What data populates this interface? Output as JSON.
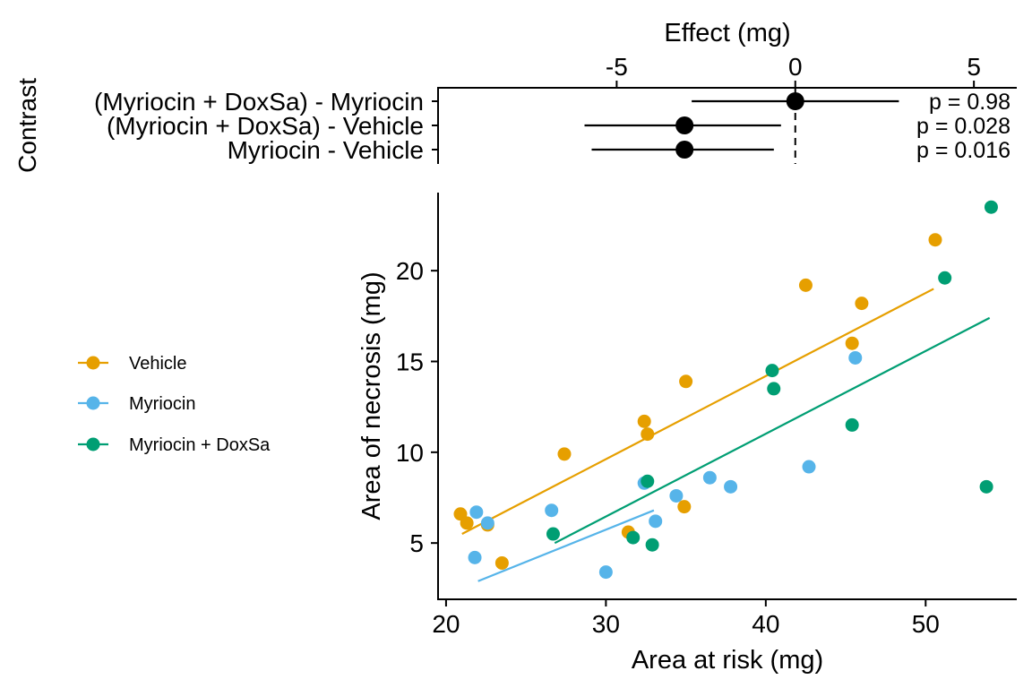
{
  "chart_data": [
    {
      "type": "forest",
      "title": "",
      "xlabel": "Effect (mg)",
      "ylabel": "Contrast",
      "xlim": [
        -10,
        6.2
      ],
      "xticks": [
        -5,
        0,
        5
      ],
      "tick_labels": [
        "-5",
        "0",
        "5"
      ],
      "reference_line": 0,
      "contrasts": [
        {
          "label": "(Myriocin + DoxSa) - Myriocin",
          "estimate": 0.0,
          "lower": -2.9,
          "upper": 2.9,
          "p_text": "p =  0.98"
        },
        {
          "label": "(Myriocin + DoxSa) - Vehicle",
          "estimate": -3.1,
          "lower": -5.9,
          "upper": -0.4,
          "p_text": "p =  0.028"
        },
        {
          "label": "Myriocin - Vehicle",
          "estimate": -3.1,
          "lower": -5.7,
          "upper": -0.6,
          "p_text": "p =  0.016"
        }
      ]
    },
    {
      "type": "scatter",
      "title": "",
      "xlabel": "Area at risk (mg)",
      "ylabel": "Area of necrosis (mg)",
      "xlim": [
        19.5,
        55.7
      ],
      "ylim": [
        1.9,
        24.3
      ],
      "xticks": [
        20,
        30,
        40,
        50
      ],
      "yticks": [
        5,
        10,
        15,
        20
      ],
      "x_tick_labels": [
        "20",
        "30",
        "40",
        "50"
      ],
      "y_tick_labels": [
        "5",
        "10",
        "15",
        "20"
      ],
      "legend_position": "left",
      "series": [
        {
          "name": "Vehicle",
          "color": "#E69F00",
          "points": [
            [
              20.9,
              6.6
            ],
            [
              21.3,
              6.1
            ],
            [
              22.6,
              6.0
            ],
            [
              23.5,
              3.9
            ],
            [
              27.4,
              9.9
            ],
            [
              31.4,
              5.6
            ],
            [
              32.4,
              11.7
            ],
            [
              32.6,
              11.0
            ],
            [
              34.9,
              7.0
            ],
            [
              35.0,
              13.9
            ],
            [
              42.5,
              19.2
            ],
            [
              45.4,
              16.0
            ],
            [
              46.0,
              18.2
            ],
            [
              50.6,
              21.7
            ]
          ],
          "fit": [
            [
              21.0,
              5.5
            ],
            [
              50.5,
              19.0
            ]
          ]
        },
        {
          "name": "Myriocin",
          "color": "#56B4E9",
          "points": [
            [
              21.8,
              4.2
            ],
            [
              21.9,
              6.7
            ],
            [
              22.6,
              6.1
            ],
            [
              26.6,
              6.8
            ],
            [
              30.0,
              3.4
            ],
            [
              32.4,
              8.3
            ],
            [
              33.1,
              6.2
            ],
            [
              34.4,
              7.6
            ],
            [
              36.5,
              8.6
            ],
            [
              37.8,
              8.1
            ],
            [
              42.7,
              9.2
            ],
            [
              45.6,
              15.2
            ]
          ],
          "fit": [
            [
              22.0,
              2.9
            ],
            [
              33.0,
              6.8
            ]
          ]
        },
        {
          "name": "Myriocin + DoxSa",
          "color": "#009E73",
          "points": [
            [
              26.7,
              5.5
            ],
            [
              31.7,
              5.3
            ],
            [
              32.6,
              8.4
            ],
            [
              32.9,
              4.9
            ],
            [
              40.4,
              14.5
            ],
            [
              40.5,
              13.5
            ],
            [
              45.4,
              11.5
            ],
            [
              51.2,
              19.6
            ],
            [
              53.8,
              8.1
            ],
            [
              54.1,
              23.5
            ]
          ],
          "fit": [
            [
              26.8,
              5.0
            ],
            [
              54.0,
              17.4
            ]
          ]
        }
      ]
    }
  ]
}
